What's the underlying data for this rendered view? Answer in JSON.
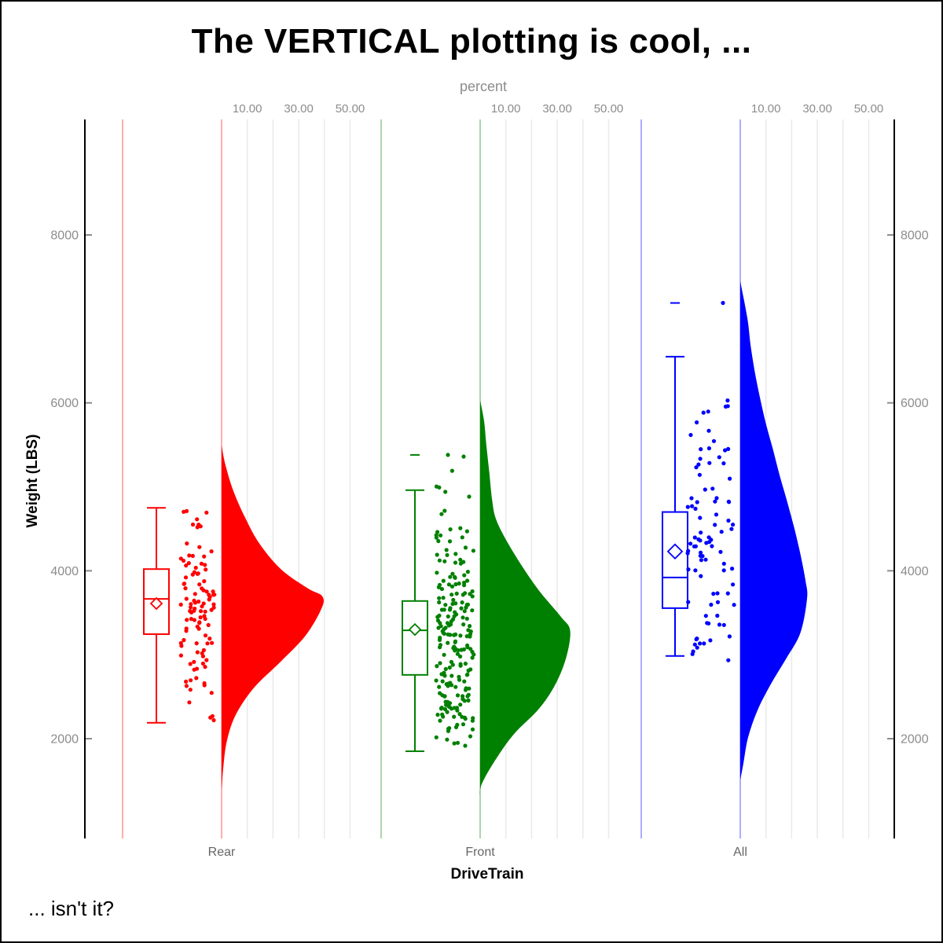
{
  "title": "The VERTICAL plotting is cool, ...",
  "footnote": "... isn't it?",
  "style": {
    "background": "#ffffff",
    "gridline_color": "#e9e9e9",
    "axis_line_color": "#000000",
    "tick_color": "#8c8c8c",
    "tick_label_color": "#8c8c8c",
    "category_label_color": "#666666",
    "light_line_opacity": 0.32
  },
  "chart_data": {
    "type": "raincloud (half-violin + box + jitter)",
    "orientation": "vertical",
    "x_axis": {
      "label": "DriveTrain",
      "categories": [
        "Rear",
        "Front",
        "All"
      ]
    },
    "y_axis": {
      "label": "Weight (LBS)",
      "ticks": [
        2000,
        4000,
        6000,
        8000
      ],
      "range": [
        810,
        9380
      ],
      "mirrored_right": true
    },
    "density_axis": {
      "label": "percent",
      "tick_values": [
        10,
        30,
        50
      ],
      "tick_labels": [
        "10.00",
        "30.00",
        "50.00"
      ],
      "gridline_values": [
        10,
        20,
        30,
        40,
        50
      ],
      "repeated_per_group": true
    },
    "legend": "none",
    "groups": [
      {
        "name": "Rear",
        "color": "#ff0000",
        "box": {
          "whisker_low": 2190,
          "q1": 3245,
          "median": 3665,
          "mean": 3610,
          "q3": 4020,
          "whisker_high": 4750,
          "outliers": []
        },
        "violin_weight_percent": [
          [
            5490,
            0
          ],
          [
            5260,
            1.5
          ],
          [
            4950,
            4.6
          ],
          [
            4630,
            9.2
          ],
          [
            4320,
            14.8
          ],
          [
            4010,
            23.4
          ],
          [
            3790,
            33.6
          ],
          [
            3695,
            39.2
          ],
          [
            3545,
            38.8
          ],
          [
            3225,
            32.6
          ],
          [
            2915,
            22.9
          ],
          [
            2610,
            12.7
          ],
          [
            2290,
            5.6
          ],
          [
            1980,
            2.1
          ],
          [
            1670,
            0.7
          ],
          [
            1390,
            0
          ]
        ],
        "jitter": {
          "count": 105,
          "weight_min": 2190,
          "weight_max": 4755,
          "seed": 7
        },
        "extra_points": []
      },
      {
        "name": "Front",
        "color": "#008000",
        "box": {
          "whisker_low": 1850,
          "q1": 2760,
          "median": 3290,
          "mean": 3300,
          "q3": 3640,
          "whisker_high": 4960,
          "outliers": [
            5380
          ]
        },
        "violin_weight_percent": [
          [
            6030,
            0
          ],
          [
            5790,
            1.5
          ],
          [
            5470,
            2.5
          ],
          [
            5160,
            3.6
          ],
          [
            4860,
            4.6
          ],
          [
            4630,
            6
          ],
          [
            4390,
            9.7
          ],
          [
            4070,
            16
          ],
          [
            3760,
            23
          ],
          [
            3450,
            31.5
          ],
          [
            3290,
            35
          ],
          [
            2980,
            33.6
          ],
          [
            2660,
            29.5
          ],
          [
            2360,
            23
          ],
          [
            2050,
            13
          ],
          [
            1730,
            5.6
          ],
          [
            1450,
            0.5
          ],
          [
            1300,
            0
          ]
        ],
        "jitter": {
          "count": 215,
          "weight_min": 1850,
          "weight_max": 5300,
          "seed": 13
        },
        "extra_points": [
          {
            "weight": 5380,
            "offset": -41
          },
          {
            "weight": 5360,
            "offset": -21
          }
        ]
      },
      {
        "name": "All",
        "color": "#0000ff",
        "box": {
          "whisker_low": 2985,
          "q1": 3555,
          "median": 3920,
          "mean": 4230,
          "q3": 4700,
          "whisker_high": 6550,
          "outliers": [
            7190
          ]
        },
        "violin_weight_percent": [
          [
            7450,
            0
          ],
          [
            7000,
            2.8
          ],
          [
            6690,
            4
          ],
          [
            6380,
            5.6
          ],
          [
            6070,
            7.6
          ],
          [
            5750,
            10
          ],
          [
            5450,
            12.7
          ],
          [
            5140,
            15.3
          ],
          [
            4820,
            18.3
          ],
          [
            4510,
            21
          ],
          [
            4200,
            23.4
          ],
          [
            3880,
            25.4
          ],
          [
            3670,
            26
          ],
          [
            3260,
            23.4
          ],
          [
            2950,
            17.8
          ],
          [
            2640,
            11.7
          ],
          [
            2330,
            6.6
          ],
          [
            2010,
            3
          ],
          [
            1700,
            1.2
          ],
          [
            1510,
            0
          ]
        ],
        "jitter": {
          "count": 90,
          "weight_min": 2905,
          "weight_max": 6450,
          "seed": 3
        },
        "extra_points": [
          {
            "weight": 7190,
            "offset": -22
          }
        ]
      }
    ]
  }
}
